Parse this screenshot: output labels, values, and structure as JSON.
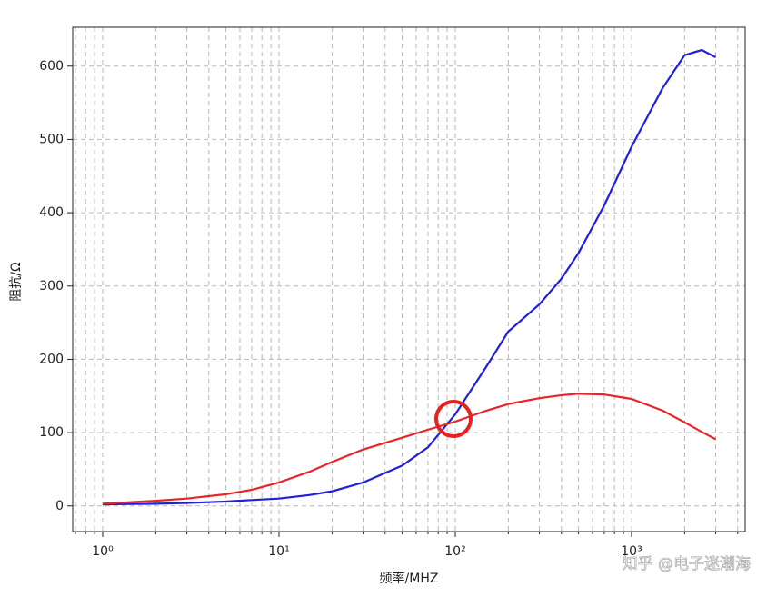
{
  "chart_data": {
    "type": "line",
    "x_label": "频率/MHZ",
    "y_label": "阻抗/Ω",
    "x_scale": "log",
    "grid": true,
    "x": [
      1,
      2,
      3,
      5,
      7,
      10,
      15,
      20,
      30,
      50,
      70,
      100,
      150,
      200,
      300,
      400,
      500,
      700,
      1000,
      1500,
      2000,
      2500,
      3000
    ],
    "series": [
      {
        "color": "#1f1fdd",
        "values": [
          2,
          3,
          4,
          6,
          8,
          10,
          15,
          20,
          32,
          55,
          80,
          125,
          190,
          238,
          275,
          310,
          345,
          410,
          490,
          570,
          615,
          622,
          612
        ]
      },
      {
        "color": "#e8262a",
        "values": [
          3,
          7,
          10,
          16,
          22,
          32,
          47,
          60,
          77,
          93,
          104,
          115,
          130,
          139,
          147,
          151,
          153,
          152,
          146,
          130,
          114,
          101,
          91
        ]
      }
    ],
    "xlim": [
      0.676,
      4410
    ],
    "ylim": [
      -35,
      653
    ],
    "xticks": [
      {
        "value": 1,
        "label": "10⁰"
      },
      {
        "value": 10,
        "label": "10¹"
      },
      {
        "value": 100,
        "label": "10²"
      },
      {
        "value": 1000,
        "label": "10³"
      }
    ],
    "xminorticks": [
      0.7,
      0.8,
      0.9,
      2,
      3,
      4,
      5,
      6,
      7,
      8,
      9,
      20,
      30,
      40,
      50,
      60,
      70,
      80,
      90,
      200,
      300,
      400,
      500,
      600,
      700,
      800,
      900,
      2000,
      3000,
      4000
    ],
    "yticks": [
      0,
      100,
      200,
      300,
      400,
      500,
      600
    ],
    "watermark": "知乎 @电子迷潮海"
  }
}
